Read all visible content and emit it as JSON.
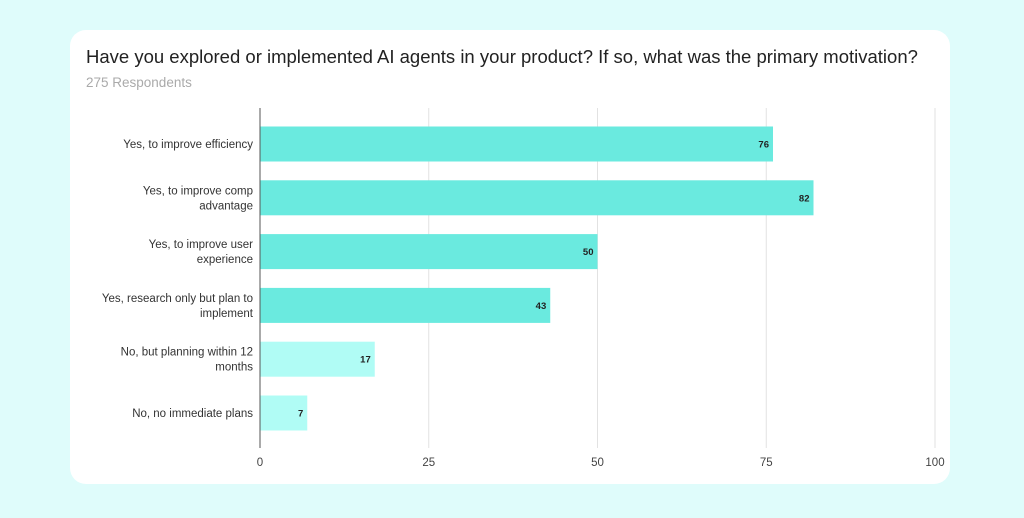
{
  "chart_data": {
    "type": "bar",
    "orientation": "horizontal",
    "title": "Have you explored or implemented AI agents in your product? If so, what was the primary motivation?",
    "subtitle": "275 Respondents",
    "categories": [
      [
        "Yes, to improve efficiency"
      ],
      [
        "Yes, to improve comp",
        "advantage"
      ],
      [
        "Yes, to improve user",
        "experience"
      ],
      [
        "Yes, research only but plan to",
        "implement"
      ],
      [
        "No, but planning within 12",
        "months"
      ],
      [
        "No, no immediate plans"
      ]
    ],
    "values": [
      76,
      82,
      50,
      43,
      17,
      7
    ],
    "bar_colors": [
      "#6aeadf",
      "#6aeadf",
      "#6aeadf",
      "#6aeadf",
      "#b0fcf5",
      "#b0fcf5"
    ],
    "xlim": [
      0,
      100
    ],
    "xticks": [
      0,
      25,
      50,
      75,
      100
    ],
    "grid": true,
    "data_labels": true,
    "background_color": "#dffcfb"
  }
}
